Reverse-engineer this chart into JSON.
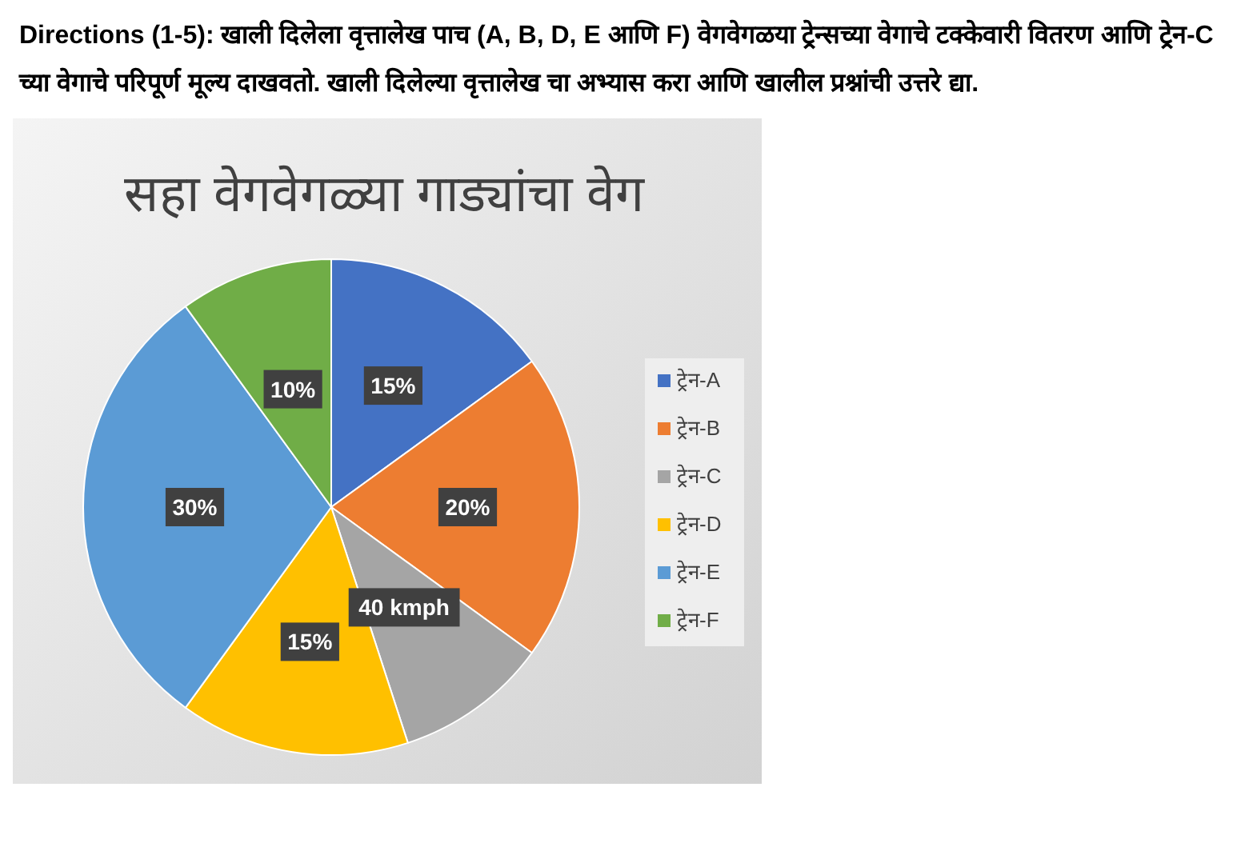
{
  "chart_data": {
    "type": "pie",
    "title": "सहा वेगवेगळ्या गाड्यांचा वेग",
    "categories": [
      "ट्रेन-A",
      "ट्रेन-B",
      "ट्रेन-C",
      "ट्रेन-D",
      "ट्रेन-E",
      "ट्रेन-F"
    ],
    "values": [
      15,
      20,
      10,
      15,
      30,
      10
    ],
    "value_labels": [
      "15%",
      "20%",
      null,
      "15%",
      "30%",
      "10%"
    ],
    "colors": [
      "#4472c4",
      "#ed7d31",
      "#a5a5a5",
      "#ffc000",
      "#5b9bd5",
      "#70ad47"
    ],
    "legend": "right",
    "annotations": [
      {
        "text": "40 kmph",
        "x": "ट्रेन-C"
      },
      "Directions (1-5):  खाली दिलेला वृत्तालेख पाच (A, B, D, E आणि F) वेगवेगळया ट्रेन्सच्या वेगाचे टक्केवारी वितरण आणि ट्रेन-C च्या वेगाचे परिपूर्ण मूल्य दाखवतो. खाली दिलेल्या वृत्तालेख चा अभ्यास करा आणि खालील प्रश्नांची उत्तरे द्या."
    ]
  }
}
